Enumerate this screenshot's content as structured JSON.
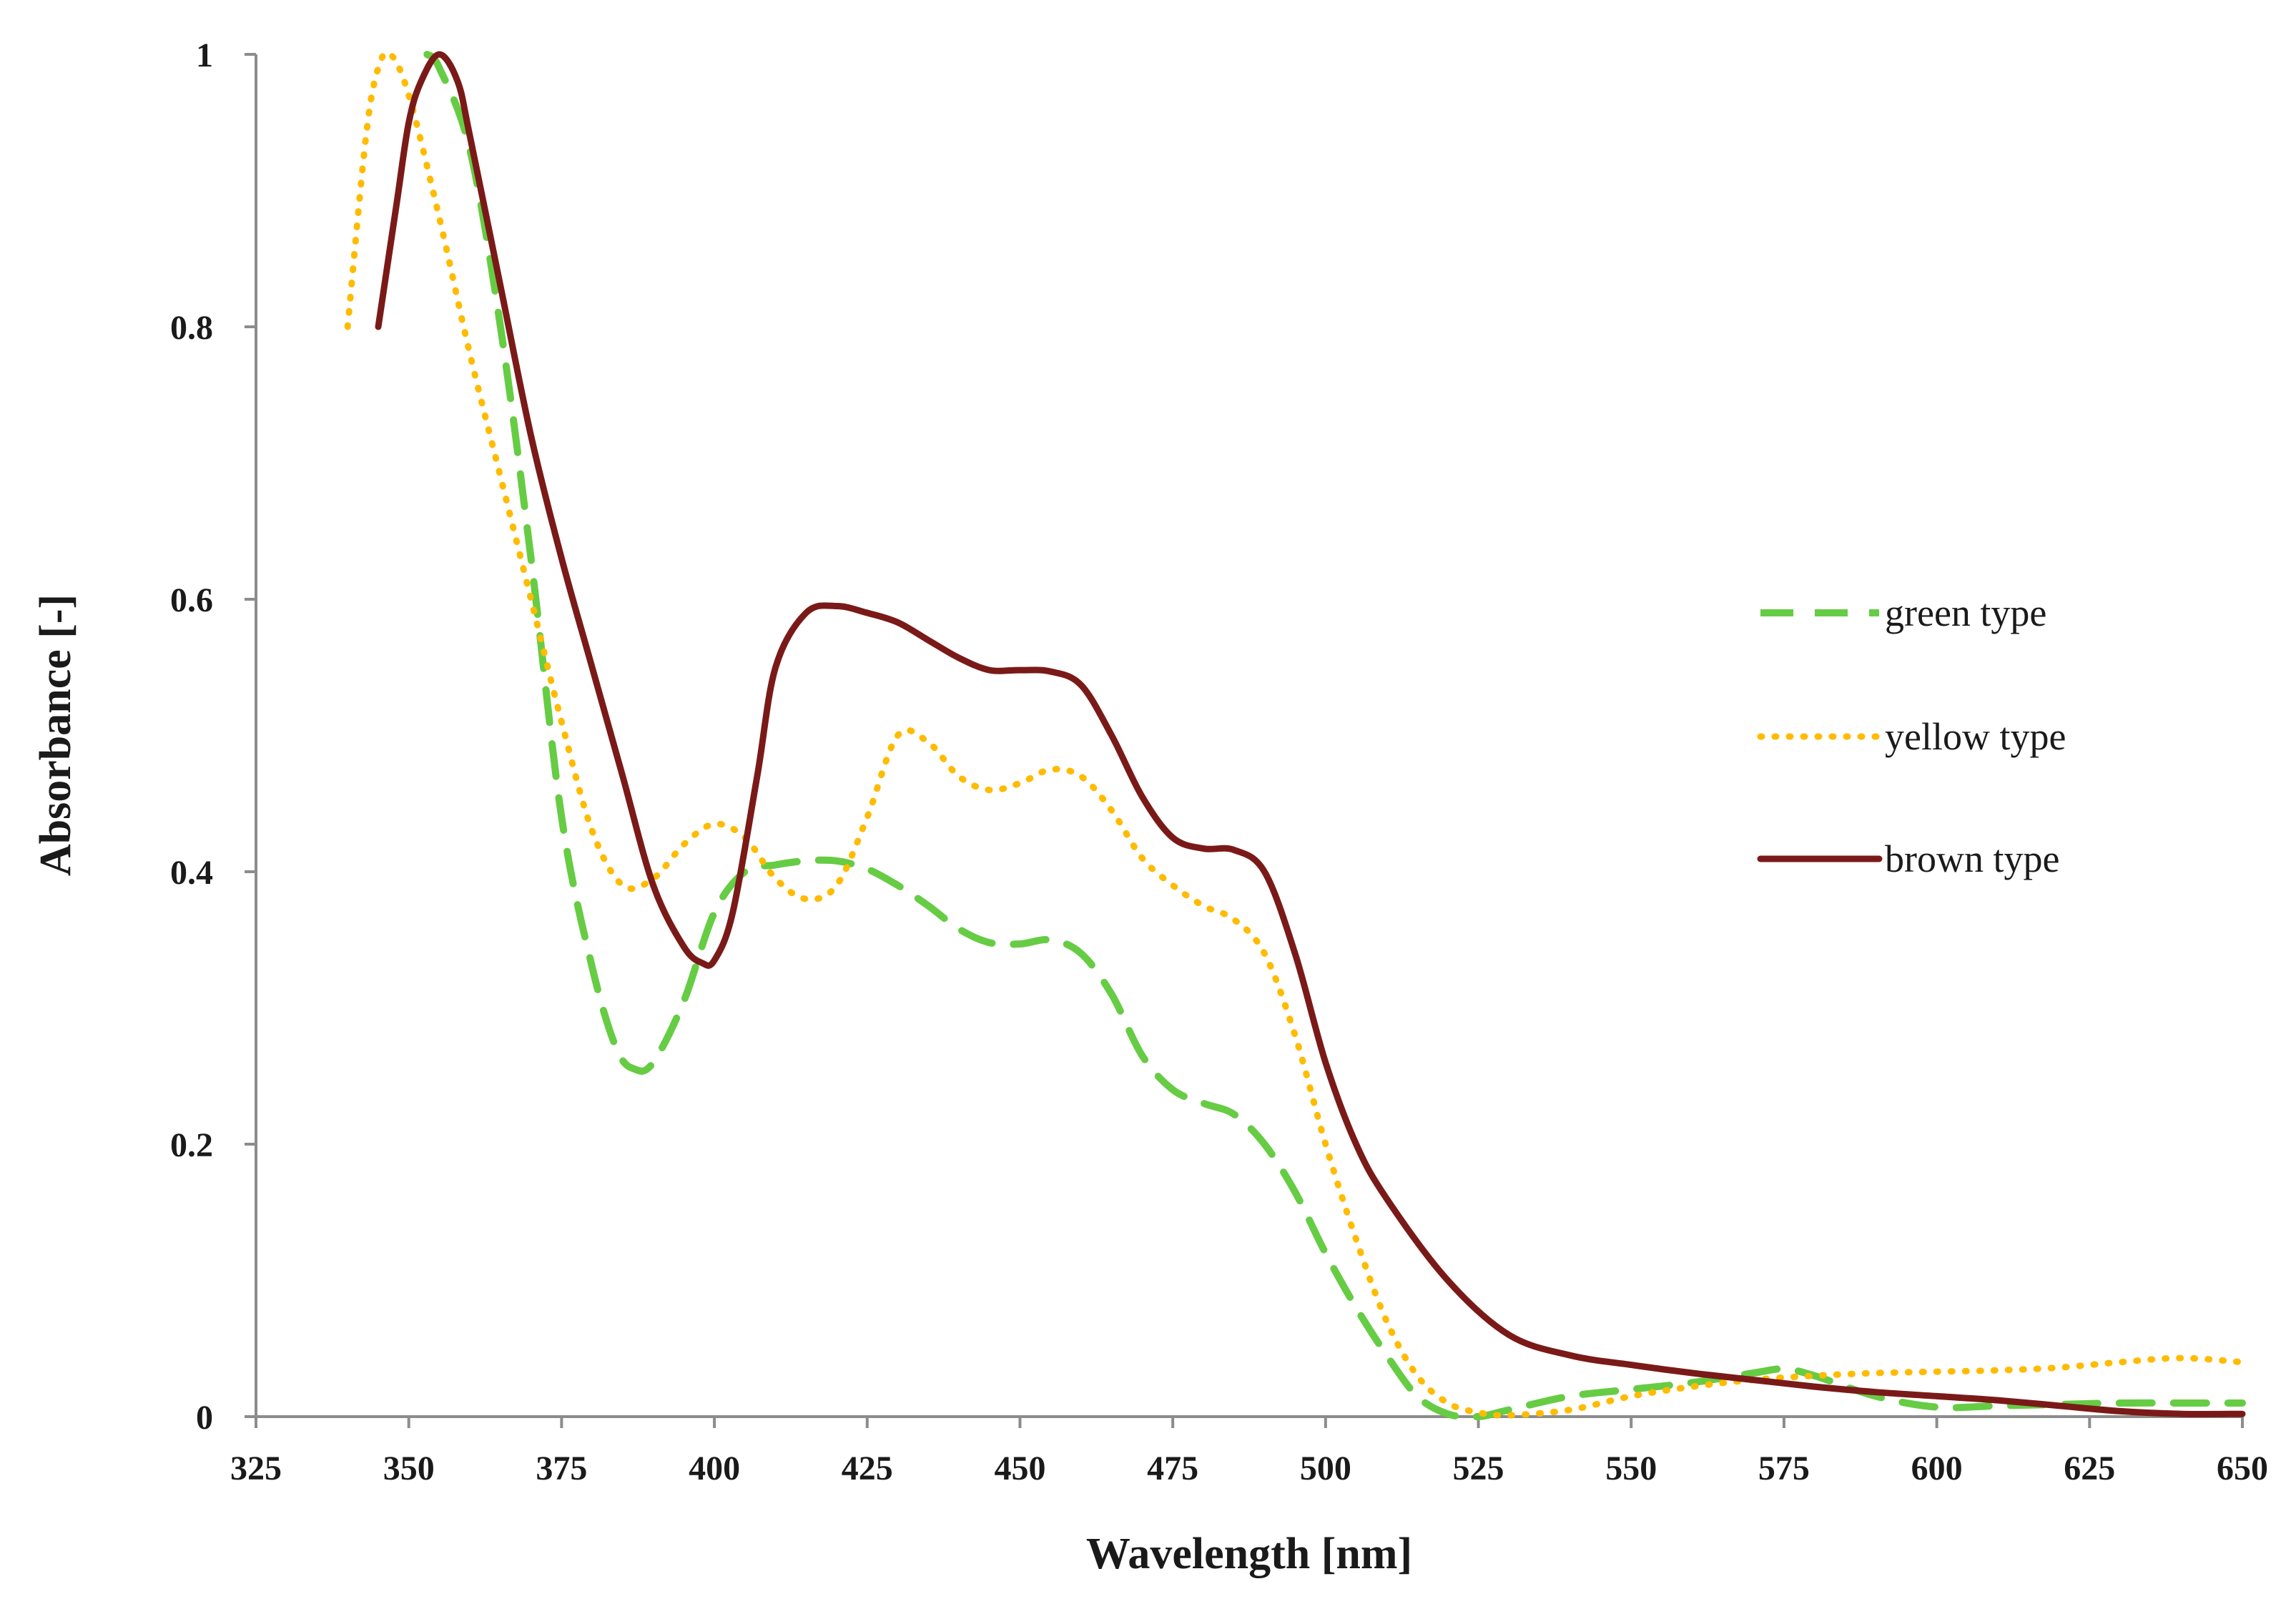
{
  "chart_data": {
    "type": "line",
    "title": "",
    "xlabel": "Wavelength [nm]",
    "ylabel": "Absorbance [-]",
    "xlim": [
      325,
      650
    ],
    "ylim": [
      0,
      1
    ],
    "xticks": [
      325,
      350,
      375,
      400,
      425,
      450,
      475,
      500,
      525,
      550,
      575,
      600,
      625,
      650
    ],
    "yticks": [
      0,
      0.2,
      0.4,
      0.6,
      0.8,
      1
    ],
    "ytick_labels": [
      "0",
      "0.2",
      "0.4",
      "0.6",
      "0.8",
      "1"
    ],
    "grid": false,
    "legend_position": "right",
    "series": [
      {
        "name": "green type",
        "style": "dashed",
        "color": "#66cc44",
        "x": [
          353,
          355,
          360,
          365,
          370,
          375,
          380,
          384,
          387,
          390,
          395,
          400,
          405,
          410,
          415,
          420,
          425,
          430,
          435,
          440,
          445,
          450,
          455,
          460,
          465,
          470,
          475,
          480,
          485,
          490,
          495,
          500,
          505,
          510,
          515,
          520,
          525,
          530,
          540,
          550,
          560,
          570,
          575,
          580,
          590,
          600,
          610,
          620,
          630,
          640,
          650
        ],
        "values": [
          1.0,
          0.99,
          0.93,
          0.8,
          0.63,
          0.44,
          0.33,
          0.27,
          0.255,
          0.26,
          0.305,
          0.37,
          0.4,
          0.405,
          0.408,
          0.408,
          0.402,
          0.39,
          0.375,
          0.358,
          0.348,
          0.347,
          0.35,
          0.34,
          0.31,
          0.265,
          0.24,
          0.23,
          0.222,
          0.2,
          0.165,
          0.12,
          0.08,
          0.045,
          0.015,
          0.002,
          0.0,
          0.005,
          0.015,
          0.02,
          0.025,
          0.032,
          0.035,
          0.03,
          0.015,
          0.007,
          0.008,
          0.009,
          0.01,
          0.01,
          0.01
        ]
      },
      {
        "name": "yellow type",
        "style": "dotted",
        "color": "#ffbb00",
        "x": [
          340,
          343,
          345,
          347,
          350,
          355,
          360,
          365,
          370,
          375,
          380,
          385,
          390,
          395,
          400,
          405,
          410,
          415,
          420,
          425,
          430,
          435,
          440,
          445,
          450,
          455,
          460,
          465,
          470,
          475,
          480,
          485,
          490,
          495,
          500,
          505,
          510,
          515,
          520,
          525,
          530,
          540,
          550,
          560,
          570,
          580,
          590,
          600,
          610,
          620,
          630,
          640,
          650
        ],
        "values": [
          0.8,
          0.94,
          0.99,
          1.0,
          0.97,
          0.88,
          0.78,
          0.69,
          0.6,
          0.51,
          0.43,
          0.39,
          0.395,
          0.42,
          0.435,
          0.425,
          0.395,
          0.38,
          0.39,
          0.44,
          0.5,
          0.495,
          0.47,
          0.46,
          0.465,
          0.475,
          0.47,
          0.445,
          0.41,
          0.39,
          0.375,
          0.365,
          0.34,
          0.28,
          0.2,
          0.13,
          0.07,
          0.03,
          0.01,
          0.003,
          0.001,
          0.005,
          0.015,
          0.022,
          0.027,
          0.03,
          0.032,
          0.033,
          0.034,
          0.036,
          0.04,
          0.043,
          0.04
        ]
      },
      {
        "name": "brown type",
        "style": "solid",
        "color": "#7a1a18",
        "x": [
          345,
          348,
          350,
          352,
          355,
          358,
          360,
          365,
          370,
          375,
          380,
          385,
          390,
          395,
          398,
          400,
          403,
          407,
          410,
          415,
          420,
          425,
          430,
          435,
          440,
          445,
          450,
          455,
          460,
          465,
          470,
          475,
          480,
          485,
          490,
          495,
          500,
          505,
          510,
          520,
          530,
          540,
          550,
          560,
          570,
          580,
          590,
          600,
          610,
          620,
          630,
          640,
          650
        ],
        "values": [
          0.8,
          0.89,
          0.95,
          0.98,
          1.0,
          0.98,
          0.94,
          0.83,
          0.72,
          0.63,
          0.55,
          0.47,
          0.39,
          0.345,
          0.333,
          0.335,
          0.37,
          0.47,
          0.55,
          0.59,
          0.595,
          0.59,
          0.583,
          0.57,
          0.557,
          0.548,
          0.548,
          0.547,
          0.537,
          0.5,
          0.455,
          0.425,
          0.417,
          0.416,
          0.4,
          0.34,
          0.26,
          0.2,
          0.16,
          0.1,
          0.06,
          0.045,
          0.038,
          0.032,
          0.027,
          0.022,
          0.018,
          0.015,
          0.012,
          0.008,
          0.004,
          0.002,
          0.002
        ]
      }
    ]
  }
}
